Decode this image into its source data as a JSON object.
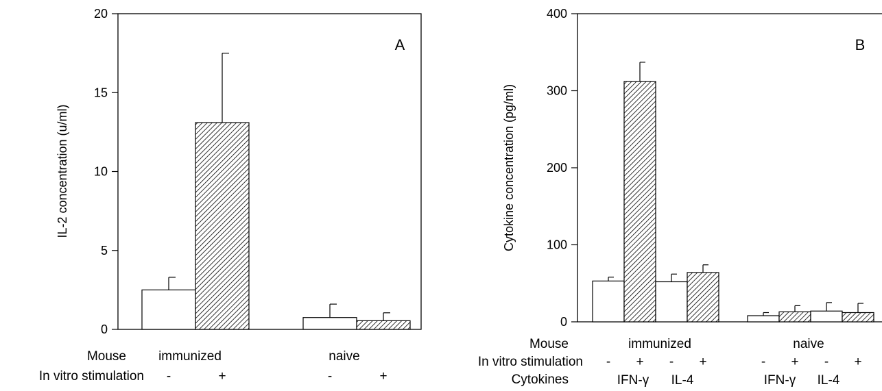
{
  "chart_data": [
    {
      "panel": "A",
      "type": "bar",
      "ylabel": "IL-2 concentration (u/ml)",
      "yticks": [
        "0",
        "5",
        "10",
        "15",
        "20"
      ],
      "ylim": [
        0,
        20
      ],
      "grid": false,
      "row_labels": [
        "Mouse",
        "In vitro stimulation"
      ],
      "groups": [
        {
          "label": "immunized",
          "bars": [
            {
              "stimulation": "-",
              "value": 2.5,
              "error": 0.8
            },
            {
              "stimulation": "+",
              "value": 13.1,
              "error": 4.4
            }
          ]
        },
        {
          "label": "naive",
          "bars": [
            {
              "stimulation": "-",
              "value": 0.75,
              "error": 0.85
            },
            {
              "stimulation": "+",
              "value": 0.55,
              "error": 0.5
            }
          ]
        }
      ]
    },
    {
      "panel": "B",
      "type": "bar",
      "ylabel": "Cytokine concentration (pg/ml)",
      "yticks": [
        "0",
        "100",
        "200",
        "300",
        "400"
      ],
      "ylim": [
        0,
        400
      ],
      "grid": false,
      "row_labels": [
        "Mouse",
        "In vitro stimulation",
        "Cytokines"
      ],
      "groups": [
        {
          "label": "immunized",
          "cytokines": [
            "IFN-γ",
            "IL-4"
          ],
          "bars": [
            {
              "cytokine": "IFN-γ",
              "stimulation": "-",
              "value": 53,
              "error": 5
            },
            {
              "cytokine": "IFN-γ",
              "stimulation": "+",
              "value": 312,
              "error": 25
            },
            {
              "cytokine": "IL-4",
              "stimulation": "-",
              "value": 52,
              "error": 10
            },
            {
              "cytokine": "IL-4",
              "stimulation": "+",
              "value": 64,
              "error": 10
            }
          ]
        },
        {
          "label": "naive",
          "cytokines": [
            "IFN-γ",
            "IL-4"
          ],
          "bars": [
            {
              "cytokine": "IFN-γ",
              "stimulation": "-",
              "value": 8,
              "error": 4
            },
            {
              "cytokine": "IFN-γ",
              "stimulation": "+",
              "value": 13,
              "error": 8
            },
            {
              "cytokine": "IL-4",
              "stimulation": "-",
              "value": 14,
              "error": 11
            },
            {
              "cytokine": "IL-4",
              "stimulation": "+",
              "value": 12,
              "error": 12
            }
          ]
        }
      ]
    }
  ]
}
